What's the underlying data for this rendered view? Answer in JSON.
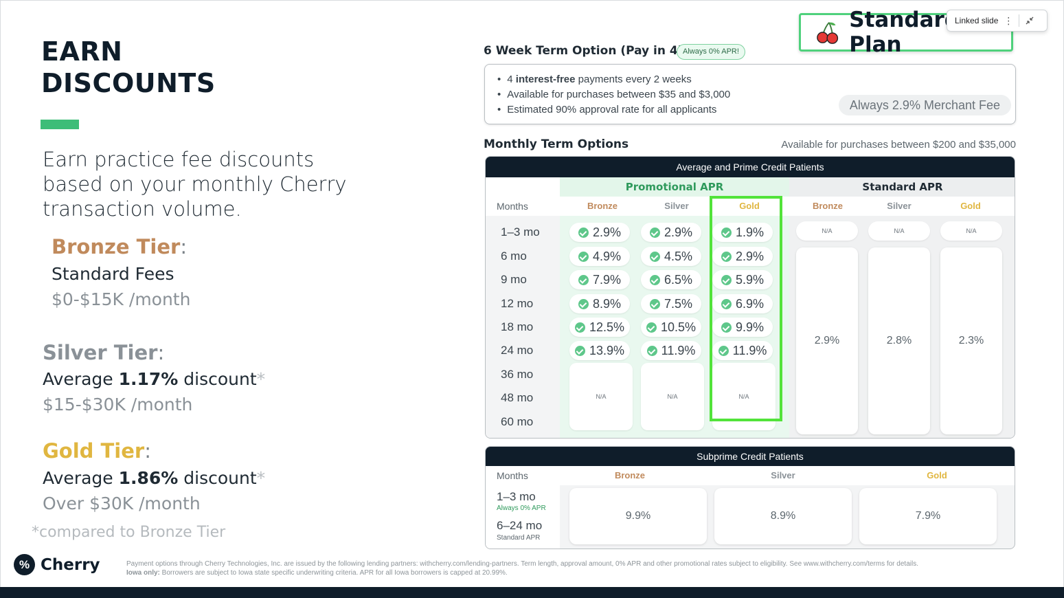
{
  "left": {
    "title_line1": "EARN",
    "title_line2": "DISCOUNTS",
    "intro": "Earn practice fee discounts based on your monthly Cherry transaction volume.",
    "bronze": {
      "name": "Bronze Tier",
      "line1": "Standard Fees",
      "line2": "$0-$15K /month"
    },
    "silver": {
      "name": "Silver Tier",
      "line1_pre": "Average ",
      "line1_bold": "1.17%",
      "line1_post": " discount",
      "line2": "$15-$30K /month"
    },
    "gold": {
      "name": "Gold Tier",
      "line1_pre": "Average ",
      "line1_bold": "1.86%",
      "line1_post": " discount",
      "line2": "Over $30K /month"
    },
    "footnote": "*compared to Bronze Tier",
    "logo_text": "Cherry",
    "logo_mark": "%",
    "legal_line1": "Payment options through Cherry Technologies, Inc. are issued by the following lending partners: withcherry.com/lending-partners. Term length, approval amount, 0% APR and other promotional rates subject to eligibility. See www.withcherry.com/terms for details.",
    "legal_bold": "Iowa only:",
    "legal_line2": " Borrowers are subject to Iowa state specific underwriting criteria. APR for all Iowa borrowers is capped at 20.99%."
  },
  "plan_badge": "Standard Plan",
  "linked_slide": "Linked slide",
  "six_week": {
    "title": "6 Week Term Option (Pay in 4)",
    "pill": "Always 0% APR!",
    "bullet1_pre": "4 ",
    "bullet1_bold": "interest-free",
    "bullet1_post": " payments every 2 weeks",
    "bullet2": "Available for purchases between $35 and $3,000",
    "bullet3": "Estimated 90% approval rate for all applicants",
    "fee": "Always 2.9% Merchant Fee"
  },
  "monthly": {
    "title": "Monthly Term Options",
    "avail": "Available for purchases between $200 and $35,000",
    "table_title": "Average and Prime Credit Patients",
    "promo_label": "Promotional APR",
    "standard_label": "Standard APR",
    "months_label": "Months",
    "tiers": [
      "Bronze",
      "Silver",
      "Gold"
    ],
    "months": [
      "1–3 mo",
      "6 mo",
      "9 mo",
      "12 mo",
      "18 mo",
      "24 mo",
      "36 mo",
      "48 mo",
      "60 mo"
    ],
    "promo": {
      "bronze": [
        "2.9%",
        "4.9%",
        "7.9%",
        "8.9%",
        "12.5%",
        "13.9%"
      ],
      "silver": [
        "2.9%",
        "4.5%",
        "6.5%",
        "7.5%",
        "10.5%",
        "11.9%"
      ],
      "gold": [
        "1.9%",
        "2.9%",
        "5.9%",
        "6.9%",
        "9.9%",
        "11.9%"
      ]
    },
    "na": "N/A",
    "standard": {
      "bronze": "2.9%",
      "silver": "2.8%",
      "gold": "2.3%"
    }
  },
  "subprime": {
    "title": "Subprime Credit Patients",
    "months_label": "Months",
    "tiers": [
      "Bronze",
      "Silver",
      "Gold"
    ],
    "row1_month": "1–3 mo",
    "row1_note": "Always 0% APR",
    "row2_month": "6–24 mo",
    "row2_note": "Standard APR",
    "values": [
      "9.9%",
      "8.9%",
      "7.9%"
    ]
  },
  "colors": {
    "bronze": "#c08a5c",
    "silver": "#8a9197",
    "gold": "#e0b640",
    "green": "#3dbd78",
    "navy": "#0f1d2a"
  }
}
